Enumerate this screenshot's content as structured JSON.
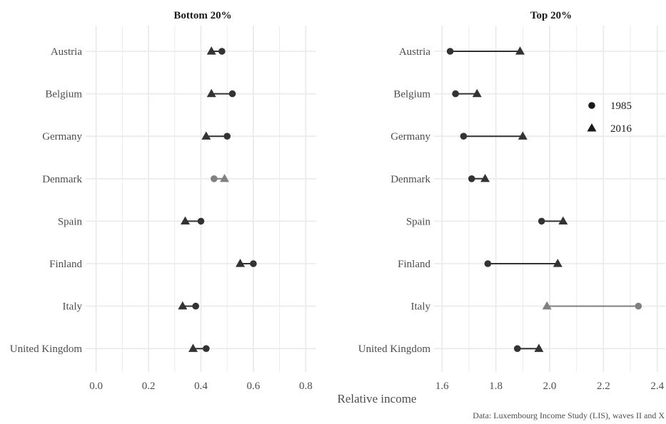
{
  "chart_data": {
    "type": "dumbbell",
    "xlabel": "Relative income",
    "caption": "Data: Luxembourg Income Study (LIS), waves II and X",
    "categories": [
      "Austria",
      "Belgium",
      "Germany",
      "Denmark",
      "Spain",
      "Finland",
      "Italy",
      "United Kingdom"
    ],
    "legend": {
      "position": "right",
      "items": [
        {
          "label": "1985",
          "shape": "circle"
        },
        {
          "label": "2016",
          "shape": "triangle"
        }
      ]
    },
    "grid": true,
    "colors": {
      "dark": "#333333",
      "highlight": "#808080",
      "grid": "#ebebeb",
      "text": "#4d4d4d"
    },
    "panels": [
      {
        "title": "Bottom 20%",
        "xlim": [
          -0.04,
          0.84
        ],
        "xticks": [
          0.0,
          0.2,
          0.4,
          0.6,
          0.8
        ],
        "tick_labels": [
          "0.0",
          "0.2",
          "0.4",
          "0.6",
          "0.8"
        ],
        "series": [
          {
            "name": "1985",
            "values": [
              0.48,
              0.52,
              0.5,
              0.45,
              0.4,
              0.6,
              0.38,
              0.42
            ]
          },
          {
            "name": "2016",
            "values": [
              0.44,
              0.44,
              0.42,
              0.49,
              0.34,
              0.55,
              0.33,
              0.37
            ]
          }
        ],
        "highlight": [
          "Denmark"
        ]
      },
      {
        "title": "Top 20%",
        "xlim": [
          1.57,
          2.43
        ],
        "xticks": [
          1.6,
          1.8,
          2.0,
          2.2,
          2.4
        ],
        "tick_labels": [
          "1.6",
          "1.8",
          "2.0",
          "2.2",
          "2.4"
        ],
        "series": [
          {
            "name": "1985",
            "values": [
              1.63,
              1.65,
              1.68,
              1.71,
              1.97,
              1.77,
              2.33,
              1.88
            ]
          },
          {
            "name": "2016",
            "values": [
              1.89,
              1.73,
              1.9,
              1.76,
              2.05,
              2.03,
              1.99,
              1.96
            ]
          }
        ],
        "highlight": [
          "Italy"
        ]
      }
    ]
  }
}
